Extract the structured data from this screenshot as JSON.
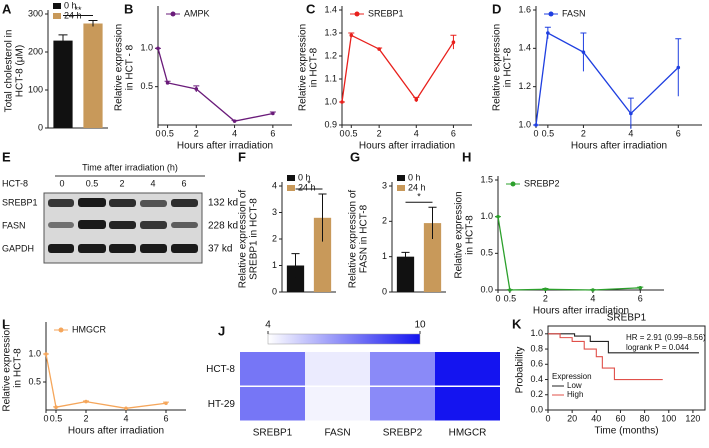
{
  "chart_data": [
    {
      "type": "bar",
      "panel": "A",
      "ylabel": [
        "Total cholesterol in",
        "HCT-8 (μM)"
      ],
      "categories": [
        null
      ],
      "series": [
        {
          "name": "0 h",
          "color": "#111111",
          "values": [
            230
          ],
          "errors": [
            15
          ]
        },
        {
          "name": "24 h",
          "color": "#c8995a",
          "values": [
            275
          ],
          "errors": [
            8
          ]
        }
      ],
      "ylim": [
        0,
        300
      ],
      "yticks": [
        0,
        100,
        200,
        300
      ],
      "annotation": "**",
      "legend": "upper left"
    },
    {
      "type": "line",
      "panel": "B",
      "ylabel": [
        "Relative expression",
        "in HCT - 8"
      ],
      "xlabel": "Hours after irradiation",
      "x": [
        0,
        0.5,
        2,
        4,
        6
      ],
      "series": [
        {
          "name": "AMPK",
          "color": "#6a1b7a",
          "values": [
            1.0,
            0.55,
            0.47,
            0.05,
            0.15
          ],
          "errors": [
            0,
            0.02,
            0.04,
            0.01,
            0.02
          ]
        }
      ],
      "xlim": [
        0,
        7
      ],
      "xticks": [
        0,
        0.5,
        2,
        4,
        6
      ],
      "ylim": [
        0,
        1.5
      ],
      "yticks": [
        0.5,
        {
          "value": 1,
          "label": "1.0"
        }
      ],
      "legend": "upper left"
    },
    {
      "type": "line",
      "panel": "C",
      "ylabel": [
        "Relative expression",
        "in HCT-8"
      ],
      "xlabel": "Hours after irradiation",
      "x": [
        0,
        0.5,
        2,
        4,
        6
      ],
      "series": [
        {
          "name": "SREBP1",
          "color": "#e8201c",
          "values": [
            1.0,
            1.29,
            1.23,
            1.01,
            1.26
          ],
          "errors": [
            0,
            0.01,
            0.005,
            0.01,
            0.03
          ]
        }
      ],
      "xlim": [
        0,
        7
      ],
      "xticks": [
        0,
        0.5,
        2,
        4,
        6
      ],
      "ylim": [
        0.9,
        1.4
      ],
      "yticks": [
        0.9,
        {
          "value": 1,
          "label": "1.0"
        },
        1.1,
        1.2,
        1.3,
        1.4
      ],
      "legend": "upper left"
    },
    {
      "type": "line",
      "panel": "D",
      "ylabel": [
        "Relative expression",
        "in HCT-8"
      ],
      "xlabel": "Hours after irradiation",
      "x": [
        0,
        0.5,
        2,
        4,
        6
      ],
      "series": [
        {
          "name": "FASN",
          "color": "#1f3fe0",
          "values": [
            1.0,
            1.48,
            1.38,
            1.06,
            1.3
          ],
          "errors": [
            0,
            0.03,
            0.1,
            0.08,
            0.15
          ]
        }
      ],
      "xlim": [
        0,
        7
      ],
      "xticks": [
        0,
        0.5,
        2,
        4,
        6
      ],
      "ylim": [
        1.0,
        1.6
      ],
      "yticks": [
        {
          "value": 1,
          "label": "1.0"
        },
        1.2,
        1.4,
        1.6
      ],
      "legend": "upper left"
    },
    {
      "type": "bar",
      "panel": "F",
      "ylabel": [
        "Relative expression of",
        "SREBP1 in HCT-8"
      ],
      "categories": [
        null
      ],
      "series": [
        {
          "name": "0 h",
          "color": "#111111",
          "values": [
            1.0
          ],
          "errors": [
            0.45
          ]
        },
        {
          "name": "24 h",
          "color": "#c8995a",
          "values": [
            2.8
          ],
          "errors": [
            0.9
          ]
        }
      ],
      "ylim": [
        0,
        4
      ],
      "yticks": [
        0,
        1,
        2,
        3,
        4
      ],
      "annotation": "*",
      "legend": "upper left"
    },
    {
      "type": "bar",
      "panel": "G",
      "ylabel": [
        "Relative expression of",
        "FASN in HCT-8"
      ],
      "categories": [
        null
      ],
      "series": [
        {
          "name": "0 h",
          "color": "#111111",
          "values": [
            1.0
          ],
          "errors": [
            0.12
          ]
        },
        {
          "name": "24 h",
          "color": "#c8995a",
          "values": [
            1.95
          ],
          "errors": [
            0.45
          ]
        }
      ],
      "ylim": [
        0,
        3
      ],
      "yticks": [
        0,
        1,
        2,
        3
      ],
      "annotation": "*",
      "legend": "upper left"
    },
    {
      "type": "line",
      "panel": "H",
      "ylabel": [
        "Relative expression",
        "in HCT-8"
      ],
      "xlabel": "Hours after irradiation",
      "x": [
        0,
        0.5,
        2,
        4,
        6
      ],
      "series": [
        {
          "name": "SREBP2",
          "color": "#2ca02c",
          "values": [
            1.0,
            0.0,
            0.01,
            0.0,
            0.03
          ],
          "errors": [
            0,
            0.005,
            0.01,
            0.005,
            0.01
          ]
        }
      ],
      "xlim": [
        0,
        7
      ],
      "xticks": [
        0,
        0.5,
        2,
        4,
        6
      ],
      "ylim": [
        0,
        1.5
      ],
      "yticks": [
        {
          "value": 0,
          "label": "0.0"
        },
        0.5,
        {
          "value": 1,
          "label": "1.0"
        },
        1.5
      ],
      "legend": "upper left"
    },
    {
      "type": "line",
      "panel": "I",
      "ylabel": [
        "Relative expression",
        "in HCT-8"
      ],
      "xlabel": "Hours after irradiation",
      "x": [
        0,
        0.5,
        2,
        4,
        6
      ],
      "series": [
        {
          "name": "HMGCR",
          "color": "#f5a65b",
          "values": [
            1.0,
            0.05,
            0.15,
            0.03,
            0.12
          ],
          "errors": [
            0,
            0.005,
            0.01,
            0.005,
            0.02
          ]
        }
      ],
      "xlim": [
        0,
        7
      ],
      "xticks": [
        0,
        0.5,
        2,
        4,
        6
      ],
      "ylim": [
        0,
        1.5
      ],
      "yticks": [
        0.5,
        {
          "value": 1,
          "label": "1.0"
        }
      ],
      "legend": "upper left"
    },
    {
      "type": "heatmap",
      "panel": "J",
      "rows": [
        "HCT-8",
        "HT-29"
      ],
      "categories": [
        "SREBP1",
        "FASN",
        "SREBP2",
        "HMGCR"
      ],
      "values": [
        [
          7.5,
          4.5,
          7.0,
          10.0
        ],
        [
          7.5,
          4.3,
          7.0,
          10.0
        ]
      ],
      "clim": [
        4,
        10
      ],
      "cticks": [
        4,
        10
      ]
    },
    {
      "type": "survival",
      "panel": "K",
      "title": "SREBP1",
      "ylabel": [
        "Probability"
      ],
      "xlabel": "Time (months)",
      "annotations": [
        "HR = 2.91 (0.99−8.56)",
        "logrank P = 0.044"
      ],
      "legend_title": "Expression",
      "legend": "lower left",
      "series": [
        {
          "name": "Low",
          "color": "#222222",
          "x": [
            0,
            22,
            35,
            50,
            125
          ],
          "values": [
            1.0,
            0.97,
            0.9,
            0.75,
            0.75
          ]
        },
        {
          "name": "High",
          "color": "#e0504a",
          "x": [
            0,
            10,
            20,
            30,
            40,
            45,
            55,
            95
          ],
          "values": [
            1.0,
            0.95,
            0.9,
            0.8,
            0.7,
            0.55,
            0.4,
            0.4
          ]
        }
      ],
      "xlim": [
        0,
        130
      ],
      "xticks": [
        0,
        20,
        40,
        60,
        80,
        100,
        120
      ],
      "ylim": [
        0,
        1.05
      ],
      "yticks": [
        {
          "value": 0,
          "label": "0.0"
        },
        0.2,
        0.4,
        0.6,
        0.8,
        {
          "value": 1,
          "label": "1.0"
        }
      ]
    }
  ],
  "blot": {
    "panel": "E",
    "title": "Time after irradiation (h)",
    "cell_line": "HCT-8",
    "lanes": [
      "0",
      "0.5",
      "2",
      "4",
      "6"
    ],
    "proteins": [
      "SREBP1",
      "FASN",
      "GAPDH"
    ],
    "sizes": [
      "132 kd",
      "228 kd",
      "37 kd"
    ]
  }
}
